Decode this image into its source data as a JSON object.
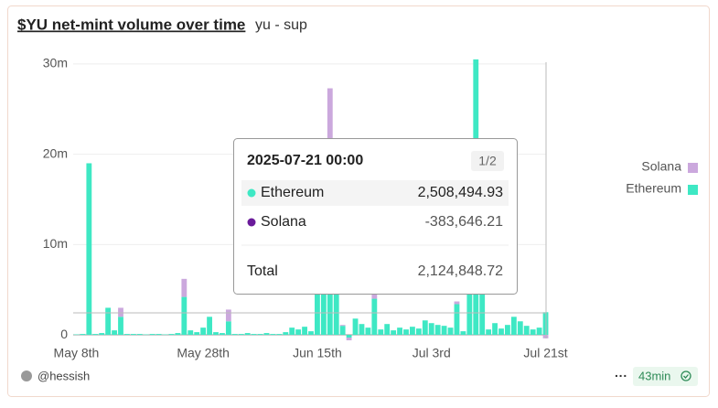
{
  "header": {
    "title": "$YU net-mint volume over time",
    "subtitle": "yu - sup"
  },
  "chart_data": {
    "type": "stacked_bar",
    "categories": [
      "May 8th",
      null,
      null,
      null,
      null,
      null,
      null,
      null,
      null,
      null,
      null,
      null,
      null,
      null,
      null,
      null,
      null,
      null,
      null,
      null,
      "May 28th",
      null,
      null,
      null,
      null,
      null,
      null,
      null,
      null,
      null,
      null,
      null,
      null,
      null,
      null,
      null,
      null,
      null,
      "Jun 15th",
      null,
      null,
      null,
      null,
      null,
      null,
      null,
      null,
      null,
      null,
      null,
      null,
      null,
      null,
      null,
      null,
      null,
      "Jul 3rd",
      null,
      null,
      null,
      null,
      null,
      null,
      null,
      null,
      null,
      null,
      null,
      null,
      null,
      null,
      null,
      null,
      null,
      "Jul 21st"
    ],
    "series": [
      {
        "name": "Ethereum",
        "color": "#3ee8c4",
        "values": [
          50000,
          100000,
          19000000,
          100000,
          200000,
          3000000,
          500000,
          2000000,
          100000,
          100000,
          100000,
          50000,
          100000,
          100000,
          50000,
          100000,
          200000,
          4200000,
          500000,
          300000,
          800000,
          2000000,
          300000,
          200000,
          1500000,
          100000,
          100000,
          200000,
          100000,
          100000,
          200000,
          100000,
          100000,
          300000,
          800000,
          600000,
          900000,
          400000,
          4500000,
          4500000,
          12000000,
          5000000,
          1000000,
          -300000,
          1800000,
          1200000,
          800000,
          4000000,
          600000,
          1200000,
          500000,
          800000,
          600000,
          900000,
          700000,
          1600000,
          1300000,
          1100000,
          1000000,
          800000,
          3400000,
          400000,
          4500000,
          30500000,
          4500000,
          600000,
          1300000,
          700000,
          1100000,
          2000000,
          1500000,
          1000000,
          600000,
          800000,
          2508494.93
        ]
      },
      {
        "name": "Solana",
        "color": "#cba8dd",
        "values": [
          0,
          0,
          0,
          0,
          0,
          0,
          0,
          1000000,
          0,
          0,
          0,
          0,
          0,
          0,
          0,
          0,
          0,
          2000000,
          0,
          0,
          0,
          0,
          0,
          0,
          1300000,
          0,
          0,
          0,
          0,
          0,
          0,
          0,
          0,
          0,
          0,
          0,
          0,
          0,
          0,
          0,
          15300000,
          0,
          100000,
          -300000,
          0,
          0,
          0,
          500000,
          0,
          0,
          0,
          0,
          0,
          0,
          0,
          0,
          0,
          0,
          0,
          0,
          300000,
          0,
          0,
          0,
          0,
          0,
          0,
          0,
          0,
          0,
          0,
          0,
          0,
          0,
          -383646.21
        ]
      }
    ],
    "ylim": [
      -400000,
      31000000
    ],
    "yticks": [
      {
        "value": 0,
        "label": "0"
      },
      {
        "value": 10000000,
        "label": "10m"
      },
      {
        "value": 20000000,
        "label": "20m"
      },
      {
        "value": 30000000,
        "label": "30m"
      }
    ],
    "grid": true,
    "legend": "right"
  },
  "tooltip": {
    "timestamp": "2025-07-21 00:00",
    "page": "1/2",
    "values": [
      "2,508,494.93",
      "-383,646.21"
    ],
    "total_label": "Total",
    "total": "2,124,848.72"
  },
  "footer": {
    "author": "@hessish",
    "age": "43min"
  }
}
